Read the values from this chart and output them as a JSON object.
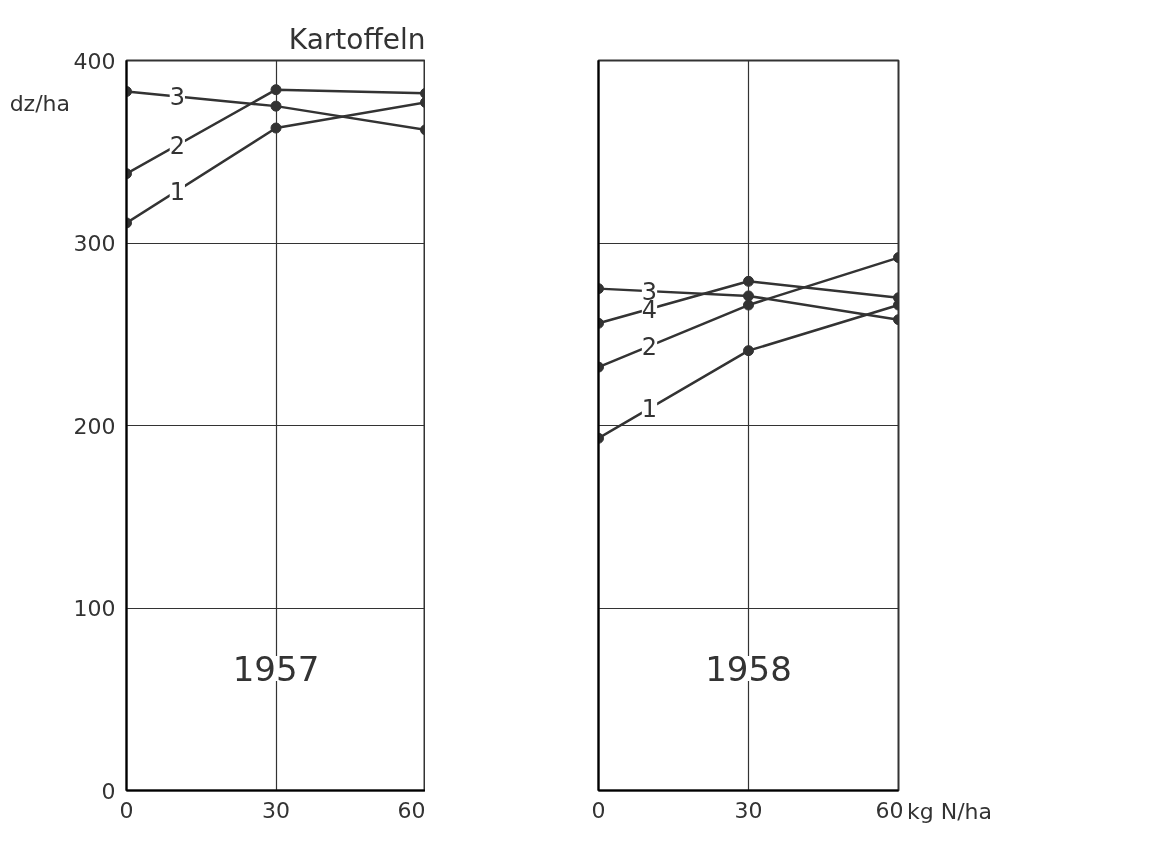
{
  "chart_data": [
    {
      "type": "line",
      "title": "Kartoffeln",
      "ylabel": "dz/ha",
      "annotations": [
        "1957"
      ],
      "x": [
        0,
        30,
        60
      ],
      "xlim": [
        0,
        60
      ],
      "xticks": [
        0,
        30,
        60
      ],
      "ylim": [
        0,
        400
      ],
      "yticks": [
        0,
        100,
        200,
        300,
        400
      ],
      "grid": true,
      "marker": "circle",
      "line_style": "solid",
      "series": [
        {
          "name": "1",
          "color": "#333333",
          "values": [
            311,
            363,
            377
          ]
        },
        {
          "name": "2",
          "color": "#333333",
          "values": [
            338,
            384,
            382
          ]
        },
        {
          "name": "3",
          "color": "#333333",
          "values": [
            383,
            375,
            362
          ]
        }
      ]
    },
    {
      "type": "line",
      "xlabel": "kg N/ha",
      "annotations": [
        "1958"
      ],
      "x": [
        0,
        30,
        60
      ],
      "xlim": [
        0,
        60
      ],
      "xticks": [
        0,
        30,
        60
      ],
      "ylim": [
        0,
        400
      ],
      "yticks": [
        0,
        100,
        200,
        300,
        400
      ],
      "grid": true,
      "marker": "circle",
      "line_style": "solid",
      "tick_labels": "x",
      "series": [
        {
          "name": "1",
          "color": "#333333",
          "values": [
            193,
            241,
            266
          ]
        },
        {
          "name": "2",
          "color": "#333333",
          "values": [
            232,
            266,
            292
          ]
        },
        {
          "name": "3",
          "color": "#333333",
          "values": [
            275,
            271,
            258
          ]
        },
        {
          "name": "4",
          "color": "#333333",
          "values": [
            256,
            279,
            270
          ]
        }
      ]
    }
  ]
}
